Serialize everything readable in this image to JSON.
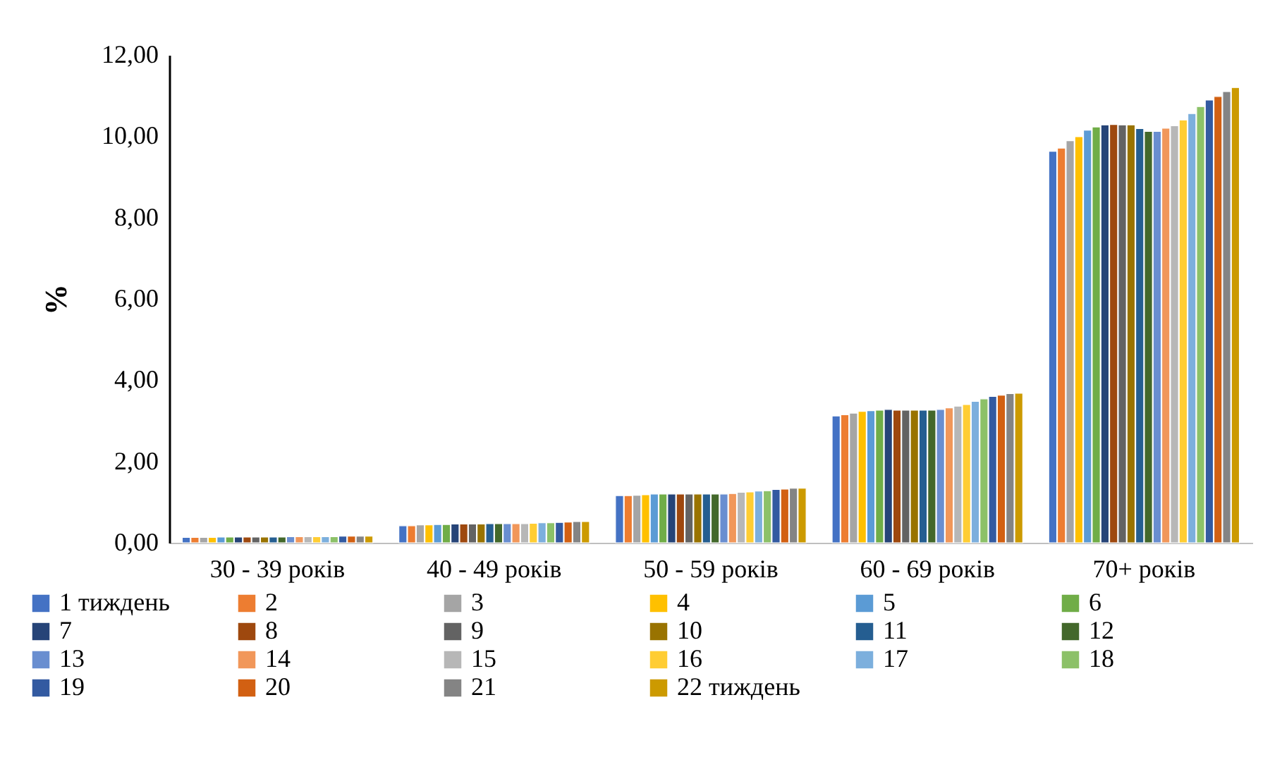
{
  "chart_data": {
    "type": "bar",
    "ylabel": "%",
    "categories": [
      "30 - 39 років",
      "40 - 49 років",
      "50 - 59 років",
      "60 - 69 років",
      "70+ років"
    ],
    "ylim": [
      0,
      12
    ],
    "yticks": [
      {
        "value": 0,
        "label": "0,00"
      },
      {
        "value": 2,
        "label": "2,00"
      },
      {
        "value": 4,
        "label": "4,00"
      },
      {
        "value": 6,
        "label": "6,00"
      },
      {
        "value": 8,
        "label": "8,00"
      },
      {
        "value": 10,
        "label": "10,00"
      },
      {
        "value": 12,
        "label": "12,00"
      }
    ],
    "grid": false,
    "legend": "bottom",
    "series": [
      {
        "name": "1 тиждень",
        "color": "#4472c4",
        "values": [
          0.13,
          0.42,
          1.16,
          3.12,
          9.63
        ]
      },
      {
        "name": "2",
        "color": "#ed7d31",
        "values": [
          0.13,
          0.42,
          1.16,
          3.15,
          9.71
        ]
      },
      {
        "name": "3",
        "color": "#a5a5a5",
        "values": [
          0.13,
          0.44,
          1.17,
          3.19,
          9.89
        ]
      },
      {
        "name": "4",
        "color": "#ffc000",
        "values": [
          0.13,
          0.44,
          1.18,
          3.23,
          9.99
        ]
      },
      {
        "name": "5",
        "color": "#5b9bd5",
        "values": [
          0.14,
          0.45,
          1.2,
          3.25,
          10.15
        ]
      },
      {
        "name": "6",
        "color": "#70ad47",
        "values": [
          0.14,
          0.45,
          1.2,
          3.26,
          10.23
        ]
      },
      {
        "name": "7",
        "color": "#264478",
        "values": [
          0.14,
          0.46,
          1.2,
          3.28,
          10.28
        ]
      },
      {
        "name": "8",
        "color": "#9e480e",
        "values": [
          0.14,
          0.46,
          1.2,
          3.26,
          10.29
        ]
      },
      {
        "name": "9",
        "color": "#636363",
        "values": [
          0.14,
          0.46,
          1.2,
          3.26,
          10.28
        ]
      },
      {
        "name": "10",
        "color": "#997300",
        "values": [
          0.14,
          0.46,
          1.2,
          3.26,
          10.28
        ]
      },
      {
        "name": "11",
        "color": "#255e91",
        "values": [
          0.14,
          0.47,
          1.2,
          3.26,
          10.19
        ]
      },
      {
        "name": "12",
        "color": "#43682b",
        "values": [
          0.14,
          0.47,
          1.2,
          3.26,
          10.12
        ]
      },
      {
        "name": "13",
        "color": "#698ed0",
        "values": [
          0.15,
          0.47,
          1.2,
          3.28,
          10.12
        ]
      },
      {
        "name": "14",
        "color": "#f1975a",
        "values": [
          0.15,
          0.47,
          1.21,
          3.32,
          10.2
        ]
      },
      {
        "name": "15",
        "color": "#b7b7b7",
        "values": [
          0.15,
          0.47,
          1.24,
          3.36,
          10.26
        ]
      },
      {
        "name": "16",
        "color": "#ffcd33",
        "values": [
          0.15,
          0.48,
          1.25,
          3.4,
          10.4
        ]
      },
      {
        "name": "17",
        "color": "#7cafdd",
        "values": [
          0.15,
          0.49,
          1.27,
          3.48,
          10.56
        ]
      },
      {
        "name": "18",
        "color": "#8cc168",
        "values": [
          0.15,
          0.49,
          1.28,
          3.54,
          10.73
        ]
      },
      {
        "name": "19",
        "color": "#335aa1",
        "values": [
          0.16,
          0.5,
          1.31,
          3.6,
          10.89
        ]
      },
      {
        "name": "20",
        "color": "#d26012",
        "values": [
          0.16,
          0.51,
          1.32,
          3.63,
          10.98
        ]
      },
      {
        "name": "21",
        "color": "#848484",
        "values": [
          0.16,
          0.52,
          1.34,
          3.67,
          11.1
        ]
      },
      {
        "name": "22 тиждень",
        "color": "#cc9a00",
        "values": [
          0.16,
          0.52,
          1.34,
          3.68,
          11.2
        ]
      }
    ]
  }
}
